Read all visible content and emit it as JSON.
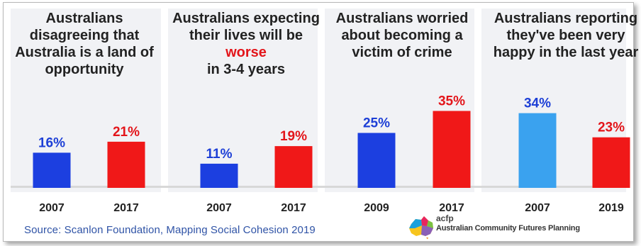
{
  "chart_data": {
    "type": "bar",
    "colors": {
      "blue": "#1c3fe0",
      "light_blue": "#3aa2ef",
      "red": "#f01818"
    },
    "panels": [
      {
        "title": "Australians disagreeing that Australia is a land of opportunity",
        "bars": [
          {
            "year": "2007",
            "value": 16,
            "label": "16%",
            "color": "blue"
          },
          {
            "year": "2017",
            "value": 21,
            "label": "21%",
            "color": "red"
          }
        ]
      },
      {
        "title_parts": [
          "Australians expecting their lives will be ",
          "worse",
          " in 3-4 years"
        ],
        "bars": [
          {
            "year": "2007",
            "value": 11,
            "label": "11%",
            "color": "blue"
          },
          {
            "year": "2017",
            "value": 19,
            "label": "19%",
            "color": "red"
          }
        ]
      },
      {
        "title": "Australians worried about becoming a victim of crime",
        "bars": [
          {
            "year": "2009",
            "value": 25,
            "label": "25%",
            "color": "blue"
          },
          {
            "year": "2017",
            "value": 35,
            "label": "35%",
            "color": "red"
          }
        ]
      },
      {
        "title": "Australians reporting they've been very happy in the last year",
        "bars": [
          {
            "year": "2007",
            "value": 34,
            "label": "34%",
            "color": "light_blue"
          },
          {
            "year": "2019",
            "value": 23,
            "label": "23%",
            "color": "red"
          }
        ]
      }
    ]
  },
  "footer": {
    "source": "Source: Scanlon Foundation,  Mapping Social Cohesion 2019",
    "logo_small": "acfp",
    "logo_org": "Australian Community Futures Planning"
  }
}
